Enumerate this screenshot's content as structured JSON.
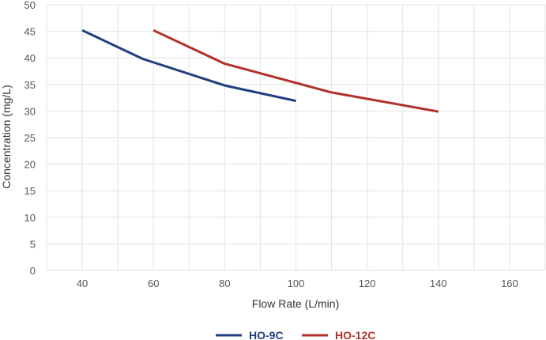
{
  "chart_data": {
    "type": "line",
    "xlabel": "Flow Rate (L/min)",
    "ylabel": "Concentration (mg/L)",
    "xlim": [
      30,
      170
    ],
    "ylim": [
      0,
      50
    ],
    "x_ticks": [
      40,
      60,
      80,
      100,
      120,
      140,
      160
    ],
    "y_ticks": [
      0,
      5,
      10,
      15,
      20,
      25,
      30,
      35,
      40,
      45,
      50
    ],
    "grid": true,
    "legend_position": "bottom",
    "series": [
      {
        "name": "HO-9C",
        "color": "#1f3f7f",
        "points": [
          [
            40,
            45.2
          ],
          [
            57,
            39.8
          ],
          [
            80,
            34.8
          ],
          [
            100,
            31.9
          ]
        ]
      },
      {
        "name": "HO-12C",
        "color": "#b0322a",
        "points": [
          [
            60,
            45.2
          ],
          [
            80,
            38.9
          ],
          [
            110,
            33.5
          ],
          [
            140,
            29.9
          ]
        ]
      }
    ]
  }
}
